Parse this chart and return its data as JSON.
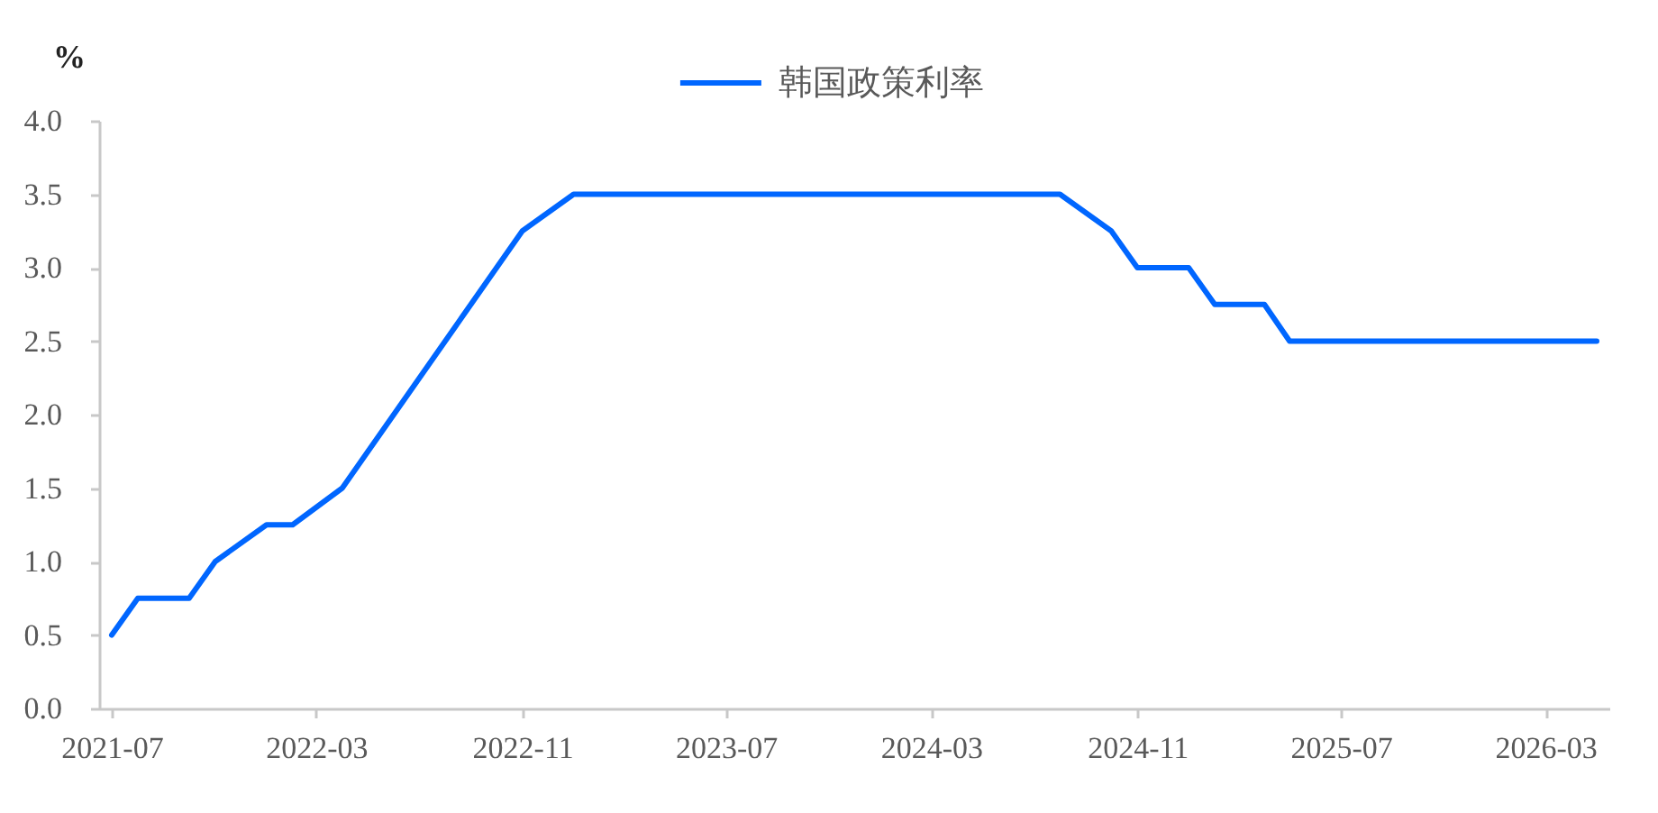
{
  "chart_data": {
    "type": "line",
    "ylabel": "%",
    "legend": "top",
    "x": [
      "2021-07",
      "2021-08",
      "2021-10",
      "2021-11",
      "2022-01",
      "2022-02",
      "2022-04",
      "2022-11",
      "2023-01",
      "2024-08",
      "2024-10",
      "2024-11",
      "2025-01",
      "2025-02",
      "2025-04",
      "2025-05",
      "2026-05"
    ],
    "series": [
      {
        "name": "韩国政策利率",
        "color": "#0066ff",
        "values": [
          0.5,
          0.75,
          0.75,
          1.0,
          1.25,
          1.25,
          1.5,
          3.25,
          3.5,
          3.5,
          3.25,
          3.0,
          3.0,
          2.75,
          2.75,
          2.5,
          2.5
        ]
      }
    ],
    "xlim": [
      "2021-06-16",
      "2026-05-16"
    ],
    "xticks": [
      "2021-07",
      "2022-03",
      "2022-11",
      "2023-07",
      "2024-03",
      "2024-11",
      "2025-07",
      "2026-03"
    ],
    "ylim": [
      0,
      4
    ],
    "yticks": [
      {
        "value": 0,
        "label": "0.0"
      },
      0.5,
      {
        "value": 1,
        "label": "1.0"
      },
      1.5,
      {
        "value": 2,
        "label": "2.0"
      },
      2.5,
      {
        "value": 3,
        "label": "3.0"
      },
      3.5,
      {
        "value": 4,
        "label": "4.0"
      }
    ]
  }
}
